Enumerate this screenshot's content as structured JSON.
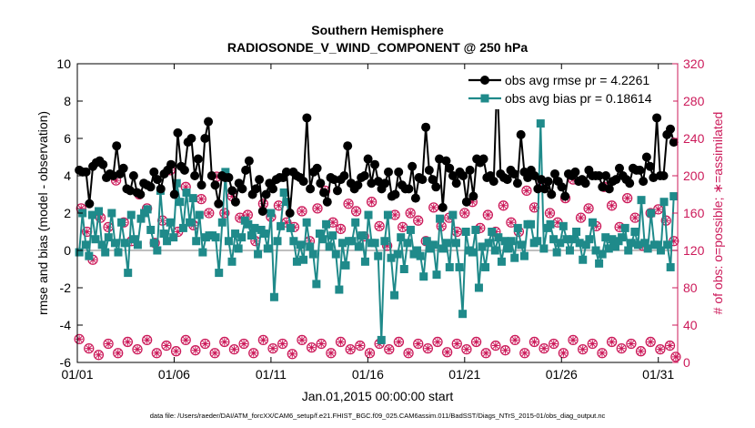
{
  "chart_data": {
    "type": "line",
    "title": "Southern Hemisphere",
    "subtitle": "RADIOSONDE_V_WIND_COMPONENT @ 250 hPa",
    "xlabel": "Jan.01,2015 00:00:00 start",
    "ylabel": "rmse and bias (model - observation)",
    "ylabel_right": "# of obs: o=possible; ∗=assimilated",
    "footnote": "data file: /Users/raeder/DAI/ATM_forcXX/CAM6_setup/f.e21.FHIST_BGC.f09_025.CAM6assim.011/BadSST/Diags_NTrS_2015-01/obs_diag_output.nc",
    "xlim": [
      1.0,
      32.0
    ],
    "ylim": [
      -6,
      10
    ],
    "ylim_right": [
      0,
      320
    ],
    "x_tick_labels": [
      "01/01",
      "01/06",
      "01/11",
      "01/16",
      "01/21",
      "01/26",
      "01/31"
    ],
    "x_tick_values": [
      1,
      6,
      11,
      16,
      21,
      26,
      31
    ],
    "y_tick_labels": [
      "-6",
      "-4",
      "-2",
      "0",
      "2",
      "4",
      "6",
      "8",
      "10"
    ],
    "y_tick_values": [
      -6,
      -4,
      -2,
      0,
      2,
      4,
      6,
      8,
      10
    ],
    "y_right_tick_labels": [
      "0",
      "40",
      "80",
      "120",
      "160",
      "200",
      "240",
      "280",
      "320"
    ],
    "y_right_tick_values": [
      0,
      40,
      80,
      120,
      160,
      200,
      240,
      280,
      320
    ],
    "legend_position": "top-right",
    "colors": {
      "rmse": "#000000",
      "bias": "#1f8a8a",
      "counts": "#cc1a5a",
      "zero_line": "#aaaaaa"
    },
    "series": [
      {
        "name": "obs avg rmse pr = 4.2261",
        "axis": "left",
        "values": [
          4.3,
          4.2,
          4.2,
          2.5,
          4.5,
          4.7,
          4.8,
          4.6,
          3.9,
          4.1,
          4.0,
          5.6,
          4.1,
          4.4,
          3.3,
          3.2,
          4.0,
          3.1,
          3.0,
          3.6,
          3.5,
          3.4,
          4.2,
          3.8,
          3.3,
          4.1,
          4.3,
          4.6,
          3.0,
          6.3,
          4.5,
          4.3,
          5.8,
          6.0,
          4.0,
          4.9,
          3.5,
          6.0,
          6.9,
          4.0,
          3.5,
          2.5,
          4.0,
          3.9,
          3.9,
          3.2,
          2.6,
          3.6,
          3.3,
          4.3,
          4.8,
          3.0,
          3.3,
          3.8,
          2.1,
          3.0,
          3.6,
          3.3,
          3.8,
          3.9,
          3.9,
          4.2,
          2.0,
          4.2,
          4.0,
          3.9,
          3.7,
          7.1,
          3.3,
          4.2,
          4.4,
          3.6,
          3.1,
          2.6,
          3.9,
          3.8,
          3.2,
          3.8,
          4.0,
          5.6,
          3.6,
          3.3,
          3.5,
          3.9,
          4.0,
          4.9,
          3.6,
          4.6,
          3.7,
          3.3,
          3.6,
          4.2,
          2.9,
          3.0,
          4.2,
          3.5,
          3.3,
          3.3,
          4.5,
          2.8,
          3.9,
          3.8,
          6.6,
          4.3,
          3.8,
          3.4,
          4.9,
          2.3,
          4.8,
          4.4,
          4.0,
          3.6,
          4.2,
          4.0,
          2.6,
          4.3,
          2.9,
          4.9,
          4.7,
          4.9,
          3.9,
          4.0,
          3.7,
          9.2,
          4.1,
          3.9,
          3.8,
          4.3,
          4.1,
          3.6,
          6.2,
          4.2,
          3.9,
          4.3,
          4.0,
          3.3,
          3.8,
          3.3,
          3.7,
          3.0,
          4.1,
          3.7,
          3.4,
          2.9,
          4.1,
          4.0,
          4.2,
          3.7,
          3.8,
          3.6,
          4.3,
          4.0,
          4.0,
          4.0,
          3.4,
          4.0,
          3.3,
          3.7,
          3.8,
          4.4,
          4.0,
          3.8,
          3.6,
          4.4,
          4.3,
          4.3,
          3.7,
          5.0,
          4.5,
          3.9,
          7.1,
          4.0,
          4.0,
          6.2,
          6.5,
          5.8
        ]
      },
      {
        "name": "obs avg bias pr = 0.18614",
        "axis": "left",
        "values": [
          -0.1,
          2.0,
          0.3,
          -0.3,
          1.9,
          0.6,
          2.1,
          0.3,
          -0.1,
          0.7,
          2.0,
          0.4,
          -0.1,
          1.5,
          0.4,
          -1.2,
          1.9,
          0.6,
          0.3,
          1.7,
          2.0,
          2.2,
          1.1,
          0.4,
          0.0,
          3.2,
          0.9,
          0.5,
          1.5,
          0.7,
          3.6,
          2.6,
          1.2,
          3.1,
          1.5,
          2.8,
          0.5,
          1.9,
          -0.1,
          0.7,
          0.8,
          0.8,
          0.7,
          -1.2,
          1.5,
          4.2,
          0.5,
          -0.6,
          0.9,
          0.1,
          0.7,
          1.6,
          1.4,
          0.8,
          1.2,
          -0.2,
          1.1,
          0.9,
          0.1,
          2.0,
          -2.5,
          0.5,
          1.3,
          3.1,
          2.6,
          1.2,
          0.5,
          -0.6,
          0.3,
          -0.5,
          1.5,
          0.2,
          -0.2,
          -1.8,
          0.9,
          0.6,
          1.4,
          0.2,
          0.8,
          -0.2,
          -2.1,
          0.4,
          -0.8,
          0.5,
          0.5,
          1.5,
          0.2,
          0.8,
          -0.6,
          1.9,
          0.4,
          0.4,
          -0.3,
          -4.8,
          0.5,
          1.9,
          -0.4,
          -2.4,
          -0.2,
          0.7,
          -1.0,
          0.4,
          1.1,
          -0.2,
          0.0,
          -0.3,
          -1.4,
          0.5,
          0.1,
          0.3,
          -1.3,
          1.7,
          0.1,
          0.4,
          -0.9,
          1.9,
          0.4,
          -0.9,
          -3.4,
          1.0,
          0.0,
          -0.1,
          1.1,
          -2.0,
          0.2,
          -0.9,
          0.4,
          1.0,
          0.0,
          0.7,
          -0.6,
          0.5,
          0.1,
          0.5,
          -0.4,
          1.2,
          0.3,
          -0.3,
          1.4,
          1.4,
          0.4,
          0.5,
          6.8,
          0.1,
          1.2,
          1.4,
          0.6,
          -0.1,
          0.4,
          1.3,
          0.6,
          0.0,
          0.6,
          1.0,
          0.4,
          -0.5,
          0.3,
          0.6,
          1.5,
          0.0,
          -0.7,
          -0.2,
          0.7,
          0.1,
          0.6,
          0.2,
          0.5,
          0.7,
          1.2,
          0.0,
          0.4,
          1.0,
          0.3,
          2.7,
          0.4,
          0.1,
          2.0,
          0.3,
          0.3,
          0.0,
          2.6,
          0.3,
          -0.9,
          2.9
        ]
      },
      {
        "name": "possible",
        "axis": "right",
        "points": [
          [
            1.1,
            25
          ],
          [
            1.6,
            15
          ],
          [
            2.1,
            8
          ],
          [
            2.6,
            20
          ],
          [
            3.1,
            10
          ],
          [
            3.6,
            22
          ],
          [
            4.1,
            14
          ],
          [
            4.6,
            24
          ],
          [
            5.1,
            10
          ],
          [
            5.6,
            18
          ],
          [
            6.1,
            12
          ],
          [
            6.6,
            24
          ],
          [
            7.1,
            13
          ],
          [
            7.6,
            20
          ],
          [
            8.1,
            10
          ],
          [
            8.6,
            22
          ],
          [
            9.1,
            14
          ],
          [
            9.6,
            20
          ],
          [
            10.1,
            10
          ],
          [
            10.6,
            24
          ],
          [
            11.1,
            15
          ],
          [
            11.6,
            20
          ],
          [
            12.1,
            9
          ],
          [
            12.6,
            24
          ],
          [
            13.1,
            16
          ],
          [
            13.6,
            20
          ],
          [
            14.1,
            10
          ],
          [
            14.6,
            22
          ],
          [
            15.1,
            14
          ],
          [
            15.6,
            18
          ],
          [
            16.1,
            10
          ],
          [
            16.6,
            20
          ],
          [
            17.1,
            14
          ],
          [
            17.6,
            22
          ],
          [
            18.1,
            10
          ],
          [
            18.6,
            20
          ],
          [
            19.1,
            15
          ],
          [
            19.6,
            22
          ],
          [
            20.1,
            11
          ],
          [
            20.6,
            20
          ],
          [
            21.1,
            14
          ],
          [
            21.6,
            22
          ],
          [
            22.1,
            10
          ],
          [
            22.6,
            18
          ],
          [
            23.1,
            13
          ],
          [
            23.6,
            24
          ],
          [
            24.1,
            10
          ],
          [
            24.6,
            22
          ],
          [
            25.1,
            15
          ],
          [
            25.6,
            20
          ],
          [
            26.1,
            10
          ],
          [
            26.6,
            24
          ],
          [
            27.1,
            14
          ],
          [
            27.6,
            20
          ],
          [
            28.1,
            10
          ],
          [
            28.6,
            22
          ],
          [
            29.1,
            15
          ],
          [
            29.6,
            20
          ],
          [
            30.1,
            12
          ],
          [
            30.6,
            22
          ],
          [
            31.1,
            14
          ],
          [
            31.6,
            18
          ],
          [
            31.9,
            6
          ]
        ]
      },
      {
        "name": "assimilated",
        "axis": "right",
        "points": [
          [
            1.2,
            165
          ],
          [
            1.5,
            140
          ],
          [
            1.8,
            110
          ],
          [
            2.2,
            155
          ],
          [
            2.6,
            145
          ],
          [
            3.0,
            195
          ],
          [
            3.4,
            150
          ],
          [
            3.8,
            130
          ],
          [
            4.2,
            180
          ],
          [
            4.6,
            165
          ],
          [
            5.0,
            128
          ],
          [
            5.4,
            152
          ],
          [
            5.8,
            206
          ],
          [
            6.2,
            140
          ],
          [
            6.6,
            188
          ],
          [
            7.0,
            147
          ],
          [
            7.4,
            175
          ],
          [
            7.8,
            160
          ],
          [
            8.2,
            199
          ],
          [
            8.6,
            160
          ],
          [
            9.0,
            178
          ],
          [
            9.4,
            155
          ],
          [
            9.8,
            158
          ],
          [
            10.2,
            130
          ],
          [
            10.6,
            170
          ],
          [
            11.0,
            156
          ],
          [
            11.4,
            168
          ],
          [
            11.8,
            150
          ],
          [
            12.2,
            145
          ],
          [
            12.6,
            162
          ],
          [
            13.0,
            130
          ],
          [
            13.4,
            165
          ],
          [
            13.8,
            184
          ],
          [
            14.2,
            150
          ],
          [
            14.6,
            143
          ],
          [
            15.0,
            170
          ],
          [
            15.4,
            162
          ],
          [
            15.8,
            135
          ],
          [
            16.2,
            172
          ],
          [
            16.6,
            146
          ],
          [
            17.0,
            125
          ],
          [
            17.4,
            158
          ],
          [
            17.8,
            145
          ],
          [
            18.2,
            160
          ],
          [
            18.6,
            152
          ],
          [
            19.0,
            130
          ],
          [
            19.4,
            166
          ],
          [
            19.8,
            146
          ],
          [
            20.2,
            155
          ],
          [
            20.6,
            140
          ],
          [
            21.0,
            160
          ],
          [
            21.4,
            172
          ],
          [
            21.8,
            144
          ],
          [
            22.2,
            158
          ],
          [
            22.6,
            140
          ],
          [
            23.0,
            168
          ],
          [
            23.4,
            150
          ],
          [
            23.8,
            140
          ],
          [
            24.2,
            184
          ],
          [
            24.6,
            166
          ],
          [
            25.0,
            190
          ],
          [
            25.4,
            160
          ],
          [
            25.8,
            150
          ],
          [
            26.2,
            176
          ],
          [
            26.6,
            196
          ],
          [
            27.0,
            155
          ],
          [
            27.4,
            165
          ],
          [
            27.8,
            146
          ],
          [
            28.2,
            188
          ],
          [
            28.6,
            168
          ],
          [
            29.0,
            145
          ],
          [
            29.4,
            176
          ],
          [
            29.8,
            155
          ],
          [
            30.2,
            125
          ],
          [
            30.6,
            160
          ],
          [
            31.0,
            164
          ],
          [
            31.4,
            152
          ],
          [
            31.8,
            130
          ]
        ]
      }
    ]
  }
}
